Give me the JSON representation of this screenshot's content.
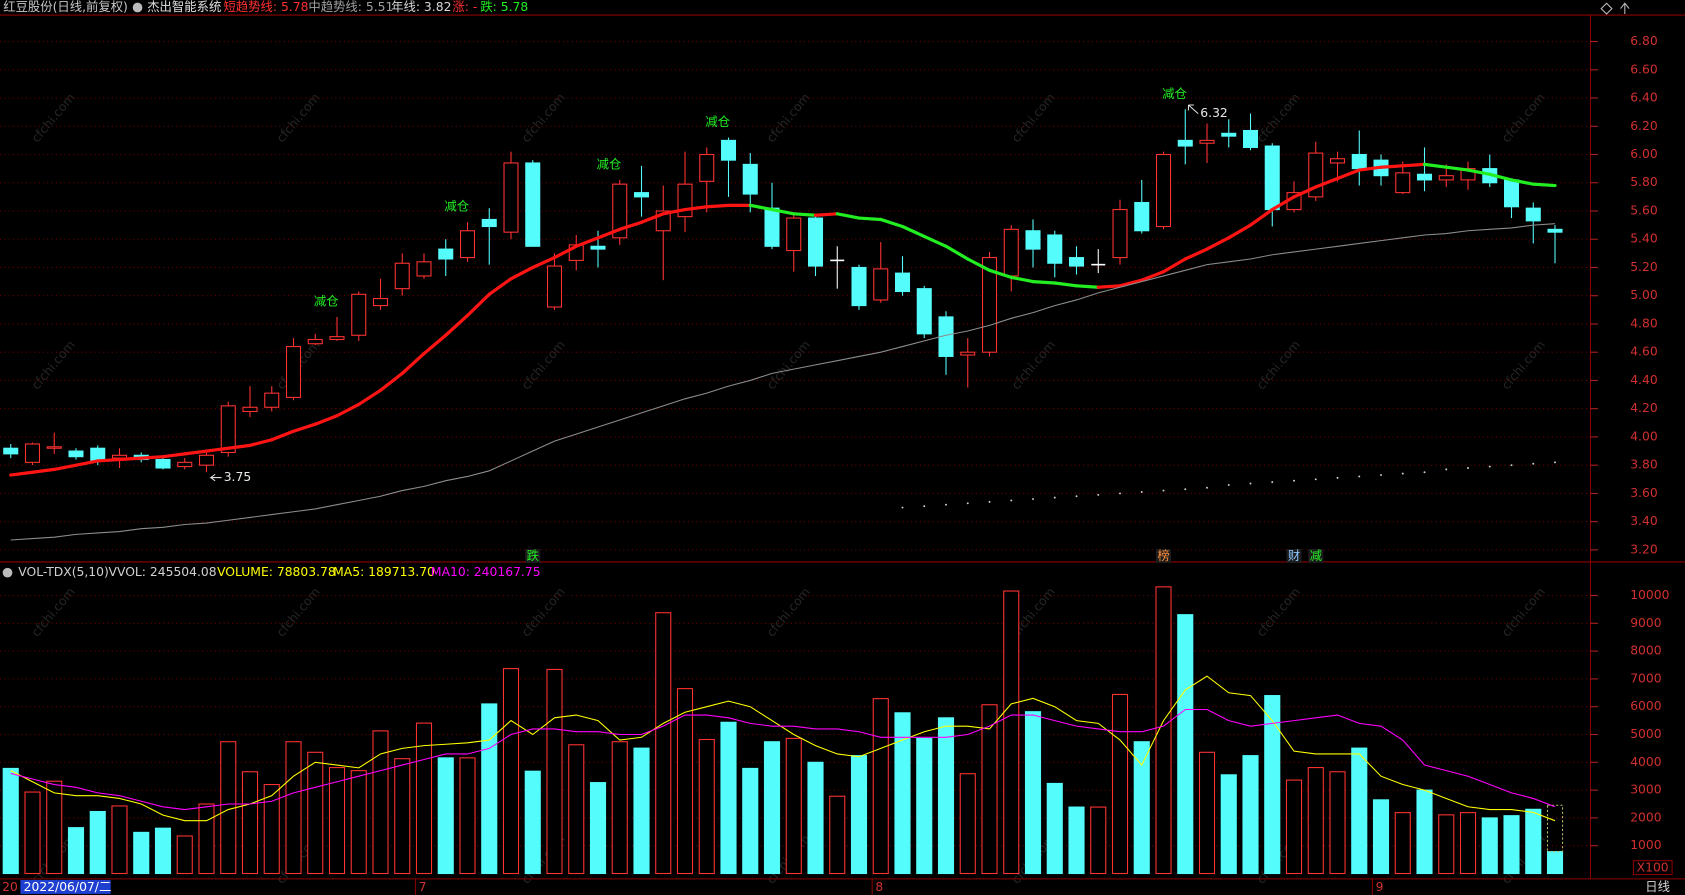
{
  "watermark": "cfchi.com",
  "x_axis": {
    "clipped_label": "20",
    "cursor_label": "2022/06/07/二",
    "period_label": "日线"
  },
  "chart_data": [
    {
      "type": "candlestick",
      "title": "红豆股份(日线,前复权)",
      "subtitle": "杰出智能系统",
      "indicator_labels": [
        {
          "text": "短趋势线: 5.78",
          "color": "#ff3030"
        },
        {
          "text": "中趋势线: 5.51",
          "color": "#a0a0a0"
        },
        {
          "text": "年线: 3.82",
          "color": "#d8d8d8"
        },
        {
          "text": "涨: -",
          "color": "#ff3030"
        },
        {
          "text": "跌: 5.78",
          "color": "#22ee22"
        }
      ],
      "categories": [
        null,
        null,
        null,
        null,
        null,
        null,
        null,
        null,
        null,
        null,
        null,
        null,
        null,
        null,
        null,
        null,
        null,
        null,
        null,
        "7",
        null,
        null,
        null,
        null,
        null,
        null,
        null,
        null,
        null,
        null,
        null,
        null,
        null,
        null,
        null,
        null,
        null,
        null,
        null,
        null,
        "8",
        null,
        null,
        null,
        null,
        null,
        null,
        null,
        null,
        null,
        null,
        null,
        null,
        null,
        null,
        null,
        null,
        null,
        null,
        null,
        null,
        null,
        null,
        "9",
        null,
        null,
        null,
        null,
        null,
        null,
        null,
        null
      ],
      "open": [
        3.92,
        3.82,
        3.92,
        3.9,
        3.92,
        3.85,
        3.87,
        3.84,
        3.79,
        3.8,
        3.89,
        4.18,
        4.21,
        4.28,
        4.66,
        4.69,
        4.72,
        4.93,
        5.05,
        5.14,
        5.33,
        5.27,
        5.54,
        5.45,
        5.94,
        4.92,
        5.25,
        5.35,
        5.41,
        5.73,
        5.46,
        5.56,
        5.81,
        6.1,
        5.93,
        5.62,
        5.32,
        5.55,
        5.25,
        5.2,
        4.97,
        5.16,
        5.05,
        4.85,
        4.58,
        4.6,
        5.14,
        5.46,
        5.43,
        5.27,
        5.22,
        5.27,
        5.66,
        5.49,
        6.1,
        6.08,
        6.15,
        6.17,
        6.06,
        5.61,
        5.7,
        5.94,
        6.0,
        5.96,
        5.73,
        5.86,
        5.82,
        5.82,
        5.9,
        5.82,
        5.62,
        5.47
      ],
      "high": [
        3.95,
        3.96,
        4.03,
        3.92,
        3.94,
        3.92,
        3.89,
        3.86,
        3.85,
        3.9,
        4.25,
        4.36,
        4.36,
        4.7,
        4.73,
        4.85,
        5.03,
        5.12,
        5.3,
        5.3,
        5.4,
        5.52,
        5.62,
        6.02,
        5.96,
        5.3,
        5.43,
        5.46,
        5.82,
        5.92,
        5.78,
        6.02,
        6.05,
        6.12,
        6.01,
        5.8,
        5.57,
        5.58,
        5.35,
        5.22,
        5.38,
        5.28,
        5.07,
        4.89,
        4.7,
        5.31,
        5.5,
        5.54,
        5.46,
        5.35,
        5.33,
        5.68,
        5.82,
        6.02,
        6.32,
        6.22,
        6.25,
        6.29,
        6.08,
        5.81,
        6.09,
        6.02,
        6.17,
        6.0,
        5.95,
        6.05,
        5.93,
        5.95,
        6.0,
        5.83,
        5.66,
        5.5
      ],
      "low": [
        3.85,
        3.8,
        3.88,
        3.84,
        3.8,
        3.78,
        3.82,
        3.77,
        3.77,
        3.75,
        3.86,
        4.14,
        4.18,
        4.26,
        4.65,
        4.68,
        4.68,
        4.9,
        5.0,
        5.12,
        5.14,
        5.24,
        5.22,
        5.4,
        5.35,
        4.9,
        5.18,
        5.2,
        5.36,
        5.56,
        5.11,
        5.45,
        5.59,
        5.7,
        5.59,
        5.33,
        5.17,
        5.14,
        5.05,
        4.9,
        4.95,
        5.0,
        4.7,
        4.44,
        4.35,
        4.57,
        5.03,
        5.2,
        5.13,
        5.15,
        5.16,
        5.22,
        5.44,
        5.47,
        5.93,
        5.94,
        6.05,
        6.03,
        5.49,
        5.59,
        5.67,
        5.81,
        5.78,
        5.78,
        5.72,
        5.74,
        5.77,
        5.75,
        5.77,
        5.55,
        5.37,
        5.23
      ],
      "close": [
        3.88,
        3.95,
        3.93,
        3.86,
        3.83,
        3.87,
        3.84,
        3.78,
        3.82,
        3.87,
        4.22,
        4.21,
        4.31,
        4.64,
        4.69,
        4.71,
        5.01,
        4.98,
        5.23,
        5.24,
        5.26,
        5.46,
        5.49,
        5.94,
        5.35,
        5.21,
        5.36,
        5.33,
        5.79,
        5.7,
        5.6,
        5.79,
        6.0,
        5.96,
        5.72,
        5.35,
        5.55,
        5.21,
        5.25,
        4.93,
        5.19,
        5.03,
        4.73,
        4.57,
        4.6,
        5.27,
        5.47,
        5.33,
        5.23,
        5.21,
        5.22,
        5.61,
        5.46,
        6.0,
        6.06,
        6.1,
        6.13,
        6.05,
        5.61,
        5.73,
        6.01,
        5.97,
        5.9,
        5.85,
        5.87,
        5.82,
        5.85,
        5.9,
        5.8,
        5.63,
        5.53,
        5.45
      ],
      "up_color": "#ff3232",
      "down_color": "#54fcfc",
      "doji_color": "#ffffff",
      "series": [
        {
          "color": "#ff1414",
          "down_color": "#22ee22",
          "width": 3,
          "values": [
            3.73,
            3.75,
            3.77,
            3.8,
            3.83,
            3.84,
            3.85,
            3.86,
            3.88,
            3.9,
            3.92,
            3.94,
            3.98,
            4.04,
            4.09,
            4.15,
            4.23,
            4.33,
            4.45,
            4.59,
            4.72,
            4.86,
            5.01,
            5.12,
            5.2,
            5.27,
            5.35,
            5.41,
            5.47,
            5.52,
            5.58,
            5.61,
            5.63,
            5.64,
            5.64,
            5.61,
            5.58,
            5.57,
            5.58,
            5.55,
            5.54,
            5.49,
            5.42,
            5.35,
            5.26,
            5.18,
            5.13,
            5.1,
            5.09,
            5.07,
            5.06,
            5.07,
            5.11,
            5.17,
            5.26,
            5.33,
            5.41,
            5.5,
            5.61,
            5.7,
            5.77,
            5.83,
            5.89,
            5.91,
            5.92,
            5.93,
            5.91,
            5.89,
            5.86,
            5.82,
            5.79,
            5.78
          ]
        },
        {
          "color": "#8c8c8c",
          "width": 1,
          "values": [
            3.27,
            3.28,
            3.29,
            3.31,
            3.32,
            3.33,
            3.35,
            3.36,
            3.38,
            3.39,
            3.41,
            3.43,
            3.45,
            3.47,
            3.49,
            3.52,
            3.55,
            3.58,
            3.62,
            3.65,
            3.69,
            3.72,
            3.76,
            3.83,
            3.9,
            3.97,
            4.02,
            4.07,
            4.12,
            4.17,
            4.22,
            4.27,
            4.31,
            4.36,
            4.4,
            4.45,
            4.48,
            4.51,
            4.54,
            4.57,
            4.6,
            4.64,
            4.68,
            4.72,
            4.75,
            4.79,
            4.84,
            4.88,
            4.93,
            4.97,
            5.02,
            5.06,
            5.1,
            5.14,
            5.18,
            5.22,
            5.24,
            5.26,
            5.29,
            5.31,
            5.33,
            5.35,
            5.37,
            5.39,
            5.41,
            5.43,
            5.44,
            5.46,
            5.47,
            5.48,
            5.5,
            5.51
          ]
        },
        {
          "color": "#cfcfcf",
          "style": "dots",
          "values": [
            null,
            null,
            null,
            null,
            null,
            null,
            null,
            null,
            null,
            null,
            null,
            null,
            null,
            null,
            null,
            null,
            null,
            null,
            null,
            null,
            null,
            null,
            null,
            null,
            null,
            null,
            null,
            null,
            null,
            null,
            null,
            null,
            null,
            null,
            null,
            null,
            null,
            null,
            null,
            null,
            null,
            3.5,
            3.51,
            3.52,
            3.53,
            3.54,
            3.55,
            3.56,
            3.57,
            3.58,
            3.59,
            3.6,
            3.61,
            3.62,
            3.63,
            3.64,
            3.66,
            3.67,
            3.68,
            3.69,
            3.7,
            3.71,
            3.72,
            3.73,
            3.74,
            3.75,
            3.77,
            3.78,
            3.79,
            3.8,
            3.81,
            3.82
          ]
        }
      ],
      "signal_color": "#22ee22",
      "signals": [
        null,
        null,
        null,
        null,
        null,
        null,
        null,
        null,
        null,
        null,
        null,
        null,
        null,
        null,
        null,
        "减仓",
        null,
        null,
        null,
        null,
        null,
        "减仓",
        null,
        null,
        null,
        null,
        null,
        null,
        "减仓",
        null,
        null,
        null,
        null,
        "减仓",
        null,
        null,
        null,
        null,
        null,
        null,
        null,
        null,
        null,
        null,
        null,
        null,
        null,
        null,
        null,
        null,
        null,
        null,
        null,
        null,
        "减仓",
        null,
        null,
        null,
        null,
        null,
        null,
        null,
        null,
        null,
        null,
        null,
        null,
        null,
        null,
        null,
        null,
        null
      ],
      "bottom_signals": [
        null,
        null,
        null,
        null,
        null,
        null,
        null,
        null,
        null,
        null,
        null,
        null,
        null,
        null,
        null,
        null,
        null,
        null,
        null,
        null,
        null,
        null,
        null,
        null,
        {
          "text": "跌",
          "color": "#22ee22"
        },
        null,
        null,
        null,
        null,
        null,
        null,
        null,
        null,
        null,
        null,
        null,
        null,
        null,
        null,
        null,
        null,
        null,
        null,
        null,
        null,
        null,
        null,
        null,
        null,
        null,
        null,
        null,
        null,
        {
          "text": "榜",
          "color": "#ff8c3c"
        },
        null,
        null,
        null,
        null,
        null,
        {
          "text": "财",
          "color": "#8cc8ff"
        },
        {
          "text": "减",
          "color": "#22ee22"
        },
        null,
        null,
        null,
        null,
        null,
        null,
        null,
        null,
        null,
        null,
        null
      ],
      "ylim": [
        3.13,
        6.98
      ],
      "yticks": [
        {
          "value": 3.2,
          "label": "3.20"
        },
        {
          "value": 3.4,
          "label": "3.40"
        },
        {
          "value": 3.6,
          "label": "3.60"
        },
        {
          "value": 3.8,
          "label": "3.80"
        },
        {
          "value": 4,
          "label": "4.00"
        },
        {
          "value": 4.2,
          "label": "4.20"
        },
        {
          "value": 4.4,
          "label": "4.40"
        },
        {
          "value": 4.6,
          "label": "4.60"
        },
        {
          "value": 4.8,
          "label": "4.80"
        },
        {
          "value": 5,
          "label": "5.00"
        },
        {
          "value": 5.2,
          "label": "5.20"
        },
        {
          "value": 5.4,
          "label": "5.40"
        },
        {
          "value": 5.6,
          "label": "5.60"
        },
        {
          "value": 5.8,
          "label": "5.80"
        },
        {
          "value": 6,
          "label": "6.00"
        },
        {
          "value": 6.2,
          "label": "6.20"
        },
        {
          "value": 6.4,
          "label": "6.40"
        },
        {
          "value": 6.6,
          "label": "6.60"
        },
        {
          "value": 6.8,
          "label": "6.80"
        }
      ],
      "grid": true
    },
    {
      "type": "bar",
      "indicator_labels": [
        {
          "text": "VOL-TDX(5,10)",
          "color": "#d0d0d0"
        },
        {
          "text": "VVOL: 245504.08",
          "color": "#d0d0d0"
        },
        {
          "text": "VOLUME: 78803.78",
          "color": "#ffff00"
        },
        {
          "text": "MA5: 189713.70",
          "color": "#ffff00"
        },
        {
          "text": "MA10: 240167.75",
          "color": "#ff00ff"
        }
      ],
      "values": [
        3780,
        2930,
        3320,
        1650,
        2230,
        2430,
        1480,
        1630,
        1350,
        2500,
        4740,
        3660,
        3200,
        4740,
        4360,
        3810,
        3700,
        5130,
        4130,
        5410,
        4160,
        4160,
        6100,
        7370,
        3680,
        7340,
        4630,
        3270,
        4740,
        4510,
        9380,
        6650,
        4820,
        5440,
        3780,
        4740,
        4860,
        4000,
        2780,
        4240,
        6290,
        5780,
        4860,
        5600,
        3590,
        6070,
        10160,
        5820,
        3240,
        2390,
        2390,
        6440,
        4740,
        10310,
        9310,
        4360,
        3550,
        4240,
        6400,
        3360,
        3810,
        3660,
        4510,
        2650,
        2190,
        3000,
        2110,
        2190,
        2000,
        2080,
        2310,
        788
      ],
      "forecast_value": 2455,
      "forecast_color": "#b8b860",
      "up_color": "#ff3232",
      "down_color": "#54fcfc",
      "series": [
        {
          "color": "#ffff00",
          "values": [
            3700,
            3300,
            2900,
            2800,
            2800,
            2700,
            2500,
            2100,
            1900,
            1900,
            2300,
            2500,
            2800,
            3500,
            4000,
            3900,
            3800,
            4300,
            4500,
            4600,
            4650,
            4700,
            4800,
            5500,
            5000,
            5600,
            5700,
            5500,
            4800,
            4900,
            5400,
            5800,
            6000,
            6200,
            6000,
            5500,
            5000,
            4600,
            4300,
            4200,
            4500,
            4800,
            5100,
            5300,
            5300,
            5200,
            6100,
            6300,
            6000,
            5500,
            5400,
            4800,
            3900,
            5500,
            6600,
            7100,
            6500,
            6400,
            5500,
            4400,
            4300,
            4300,
            4300,
            3500,
            3200,
            3000,
            2700,
            2400,
            2300,
            2300,
            2200,
            1900
          ]
        },
        {
          "color": "#ff00ff",
          "values": [
            3600,
            3400,
            3200,
            3100,
            2900,
            2800,
            2600,
            2400,
            2300,
            2400,
            2500,
            2500,
            2600,
            2900,
            3100,
            3300,
            3500,
            3700,
            3900,
            4100,
            4300,
            4300,
            4500,
            5000,
            5200,
            5200,
            5100,
            5100,
            5000,
            5000,
            5300,
            5700,
            5700,
            5600,
            5400,
            5300,
            5300,
            5200,
            5200,
            5100,
            4900,
            4900,
            4900,
            4900,
            5000,
            5300,
            5700,
            5700,
            5500,
            5300,
            5200,
            5100,
            5100,
            5300,
            5900,
            5900,
            5500,
            5300,
            5400,
            5500,
            5600,
            5700,
            5400,
            5300,
            4800,
            3900,
            3700,
            3500,
            3200,
            2900,
            2700,
            2400
          ]
        }
      ],
      "unit_label": "X100",
      "ylim": [
        0,
        10550
      ],
      "yticks": [
        1000,
        2000,
        3000,
        4000,
        5000,
        6000,
        7000,
        8000,
        9000,
        10000
      ],
      "grid": true
    }
  ]
}
